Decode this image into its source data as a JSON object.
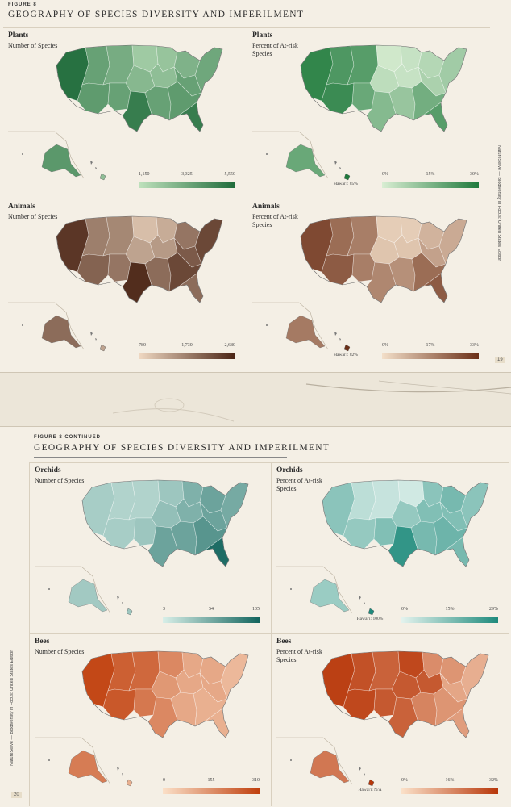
{
  "page1": {
    "figure_label": "FIGURE 8",
    "title": "GEOGRAPHY OF SPECIES DIVERSITY AND IMPERILMENT",
    "side_text": "NatureServe — Biodiversity in Focus: United States Edition",
    "page_number": "19",
    "panels": [
      {
        "title": "Plants",
        "subtitle": "Number of Species",
        "ramp": [
          "#bfe2bd",
          "#1f6b3a"
        ],
        "ticks": [
          "1,150",
          "3,325",
          "5,550"
        ],
        "hawaii_note": ""
      },
      {
        "title": "Plants",
        "subtitle": "Percent of At-risk Species",
        "ramp": [
          "#d9eed3",
          "#1f7a3c"
        ],
        "ticks": [
          "0%",
          "15%",
          "30%"
        ],
        "hawaii_note": "Hawai'i: 85%"
      },
      {
        "title": "Animals",
        "subtitle": "Number of Species",
        "ramp": [
          "#f0d9c3",
          "#4a2414"
        ],
        "ticks": [
          "780",
          "1,730",
          "2,680"
        ],
        "hawaii_note": ""
      },
      {
        "title": "Animals",
        "subtitle": "Percent of At-risk Species",
        "ramp": [
          "#f3dfc9",
          "#6b2f17"
        ],
        "ticks": [
          "0%",
          "17%",
          "33%"
        ],
        "hawaii_note": "Hawai'i: 82%"
      }
    ]
  },
  "page2": {
    "figure_label": "FIGURE 8 CONTINUED",
    "title": "GEOGRAPHY OF SPECIES DIVERSITY AND IMPERILMENT",
    "side_text": "NatureServe — Biodiversity in Focus: United States Edition",
    "page_number": "20",
    "panels": [
      {
        "title": "Orchids",
        "subtitle": "Number of Species",
        "ramp": [
          "#d8efe8",
          "#13655e"
        ],
        "ticks": [
          "3",
          "54",
          "105"
        ],
        "hawaii_note": ""
      },
      {
        "title": "Orchids",
        "subtitle": "Percent of At-risk Species",
        "ramp": [
          "#e4f3ee",
          "#1e8a7c"
        ],
        "ticks": [
          "0%",
          "15%",
          "29%"
        ],
        "hawaii_note": "Hawai'i: 100%"
      },
      {
        "title": "Bees",
        "subtitle": "Number of Species",
        "ramp": [
          "#fbe0c8",
          "#c0400e"
        ],
        "ticks": [
          "0",
          "155",
          "310"
        ],
        "hawaii_note": ""
      },
      {
        "title": "Bees",
        "subtitle": "Percent of At-risk Species",
        "ramp": [
          "#fbe1c9",
          "#b8370a"
        ],
        "ticks": [
          "0%",
          "16%",
          "32%"
        ],
        "hawaii_note": "Hawai'i: N/A"
      }
    ]
  }
}
